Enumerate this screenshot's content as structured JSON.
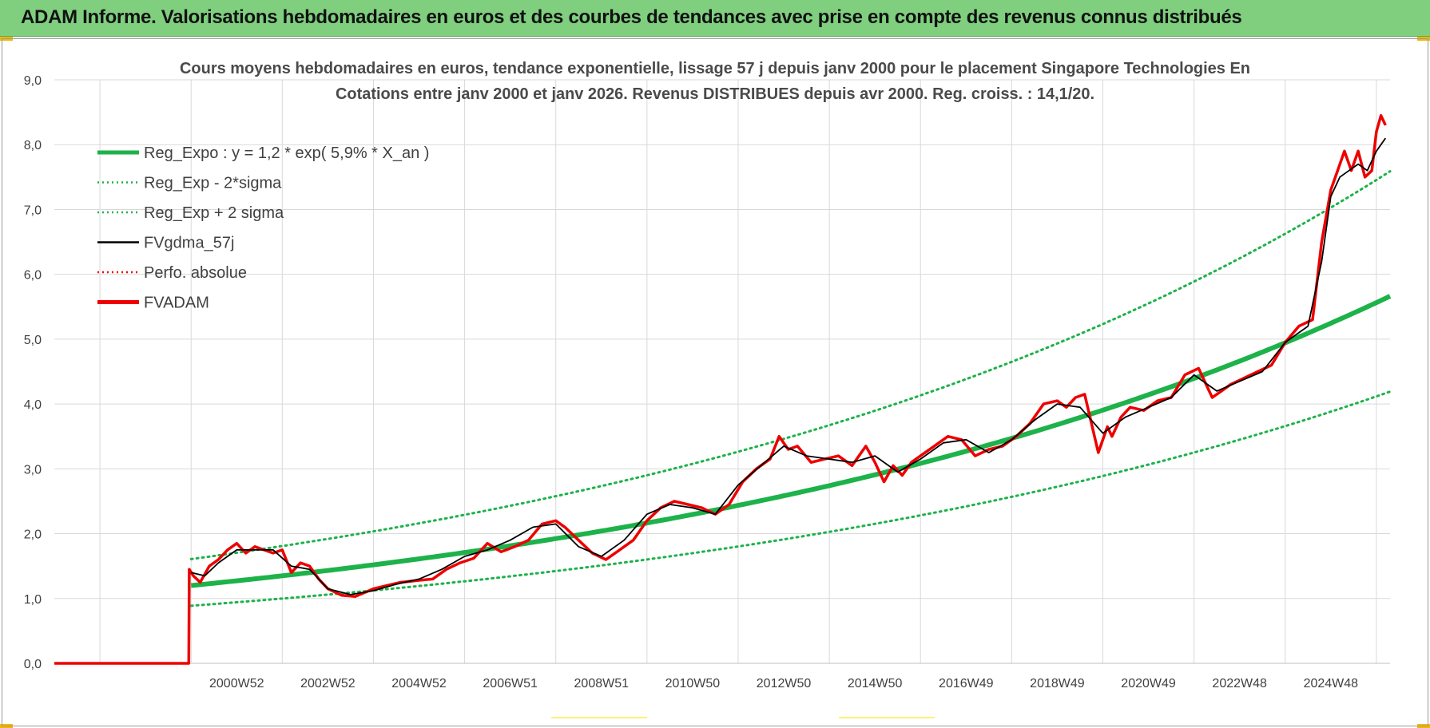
{
  "banner": {
    "title": "ADAM Informe. Valorisations hebdomadaires en euros et des courbes de tendances avec prise en compte des revenus connus distribués"
  },
  "colors": {
    "banner_bg": "#7fcf7f",
    "green": "#1db24a",
    "red": "#ee0000",
    "black": "#000000",
    "grid": "#d9d9d9",
    "axis_text": "#404040"
  },
  "chart_data": {
    "type": "line",
    "title_line1": "Cours moyens hebdomadaires en euros, tendance exponentielle, lissage 57 j depuis janv 2000 pour le placement Singapore Technologies En",
    "title_line2": "Cotations entre janv 2000 et janv 2026. Revenus DISTRIBUES depuis avr 2000. Reg. croiss. : 14,1/20.",
    "ylim": [
      0,
      9
    ],
    "xlim": [
      1997.0,
      2026.3
    ],
    "y_ticks": [
      "0,0",
      "1,0",
      "2,0",
      "3,0",
      "4,0",
      "5,0",
      "6,0",
      "7,0",
      "8,0",
      "9,0"
    ],
    "x_tick_labels": [
      "2000W52",
      "2002W52",
      "2004W52",
      "2006W51",
      "2008W51",
      "2010W50",
      "2012W50",
      "2014W50",
      "2016W49",
      "2018W49",
      "2020W49",
      "2022W48",
      "2024W48"
    ],
    "x_tick_positions": [
      2001,
      2003,
      2005,
      2007,
      2009,
      2011,
      2013,
      2015,
      2017,
      2019,
      2021,
      2023,
      2025
    ],
    "legend": [
      {
        "name": "Reg_Expo : y = 1,2 * exp( 5,9% *  X_an )",
        "color": "#1db24a",
        "style": "thick"
      },
      {
        "name": "Reg_Exp - 2*sigma",
        "color": "#1db24a",
        "style": "dotted"
      },
      {
        "name": "Reg_Exp + 2 sigma",
        "color": "#1db24a",
        "style": "dotted"
      },
      {
        "name": "FVgdma_57j",
        "color": "#000000",
        "style": "thin"
      },
      {
        "name": "Perfo. absolue",
        "color": "#ee0000",
        "style": "dotted"
      },
      {
        "name": "FVADAM",
        "color": "#ee0000",
        "style": "thick"
      }
    ],
    "regression": {
      "a": 1.2,
      "rate": 0.059,
      "start": 2000.0,
      "end": 2026.3,
      "lower_factor": 0.74,
      "upper_factor": 1.34
    },
    "fvadam": {
      "x": [
        1997.0,
        1999.95,
        1999.96,
        2000.05,
        2000.2,
        2000.4,
        2000.6,
        2000.8,
        2001.0,
        2001.2,
        2001.4,
        2001.6,
        2001.8,
        2002.0,
        2002.2,
        2002.4,
        2002.6,
        2002.8,
        2003.0,
        2003.3,
        2003.6,
        2004.0,
        2004.3,
        2004.6,
        2005.0,
        2005.3,
        2005.6,
        2005.9,
        2006.2,
        2006.5,
        2006.8,
        2007.1,
        2007.4,
        2007.7,
        2008.0,
        2008.2,
        2008.5,
        2008.8,
        2009.1,
        2009.4,
        2009.7,
        2010.0,
        2010.3,
        2010.6,
        2010.9,
        2011.2,
        2011.5,
        2011.8,
        2012.1,
        2012.4,
        2012.7,
        2012.9,
        2013.1,
        2013.3,
        2013.6,
        2013.9,
        2014.2,
        2014.5,
        2014.8,
        2015.0,
        2015.2,
        2015.4,
        2015.6,
        2015.8,
        2016.0,
        2016.3,
        2016.6,
        2016.9,
        2017.2,
        2017.5,
        2017.8,
        2018.1,
        2018.4,
        2018.7,
        2019.0,
        2019.2,
        2019.4,
        2019.6,
        2019.9,
        2020.1,
        2020.2,
        2020.4,
        2020.6,
        2020.9,
        2021.2,
        2021.5,
        2021.8,
        2022.1,
        2022.4,
        2022.6,
        2022.8,
        2023.1,
        2023.4,
        2023.7,
        2024.0,
        2024.3,
        2024.6,
        2024.8,
        2025.0,
        2025.15,
        2025.3,
        2025.45,
        2025.6,
        2025.75,
        2025.9,
        2026.0,
        2026.1,
        2026.2
      ],
      "y": [
        0,
        0,
        1.45,
        1.35,
        1.25,
        1.5,
        1.6,
        1.75,
        1.85,
        1.7,
        1.8,
        1.75,
        1.7,
        1.75,
        1.4,
        1.55,
        1.5,
        1.3,
        1.15,
        1.05,
        1.03,
        1.15,
        1.2,
        1.25,
        1.28,
        1.3,
        1.45,
        1.55,
        1.62,
        1.85,
        1.72,
        1.8,
        1.9,
        2.15,
        2.2,
        2.1,
        1.9,
        1.7,
        1.6,
        1.75,
        1.9,
        2.2,
        2.4,
        2.5,
        2.45,
        2.4,
        2.3,
        2.45,
        2.8,
        3.0,
        3.15,
        3.5,
        3.3,
        3.35,
        3.1,
        3.15,
        3.2,
        3.05,
        3.35,
        3.1,
        2.8,
        3.05,
        2.9,
        3.1,
        3.2,
        3.35,
        3.5,
        3.45,
        3.2,
        3.3,
        3.35,
        3.5,
        3.7,
        4.0,
        4.05,
        3.95,
        4.1,
        4.15,
        3.25,
        3.65,
        3.5,
        3.8,
        3.95,
        3.9,
        4.05,
        4.1,
        4.45,
        4.55,
        4.1,
        4.2,
        4.3,
        4.4,
        4.5,
        4.6,
        4.95,
        5.2,
        5.3,
        6.5,
        7.3,
        7.6,
        7.9,
        7.6,
        7.9,
        7.5,
        7.6,
        8.2,
        8.45,
        8.3
      ]
    },
    "fvgdma": {
      "x": [
        2000.0,
        2000.3,
        2000.6,
        2001.0,
        2001.4,
        2001.8,
        2002.2,
        2002.6,
        2003.0,
        2003.5,
        2004.0,
        2004.5,
        2005.0,
        2005.5,
        2006.0,
        2006.5,
        2007.0,
        2007.5,
        2008.0,
        2008.5,
        2009.0,
        2009.5,
        2010.0,
        2010.5,
        2011.0,
        2011.5,
        2012.0,
        2012.5,
        2013.0,
        2013.5,
        2014.0,
        2014.5,
        2015.0,
        2015.5,
        2016.0,
        2016.5,
        2017.0,
        2017.5,
        2018.0,
        2018.5,
        2019.0,
        2019.5,
        2020.0,
        2020.5,
        2021.0,
        2021.5,
        2022.0,
        2022.5,
        2023.0,
        2023.5,
        2024.0,
        2024.5,
        2024.8,
        2025.0,
        2025.2,
        2025.4,
        2025.6,
        2025.8,
        2026.0,
        2026.2
      ],
      "y": [
        1.4,
        1.35,
        1.55,
        1.75,
        1.75,
        1.75,
        1.5,
        1.45,
        1.15,
        1.06,
        1.12,
        1.22,
        1.3,
        1.45,
        1.65,
        1.75,
        1.9,
        2.1,
        2.15,
        1.8,
        1.65,
        1.9,
        2.3,
        2.45,
        2.4,
        2.3,
        2.75,
        3.05,
        3.35,
        3.2,
        3.15,
        3.1,
        3.2,
        2.95,
        3.15,
        3.4,
        3.45,
        3.25,
        3.45,
        3.75,
        4.0,
        3.95,
        3.55,
        3.8,
        3.95,
        4.1,
        4.45,
        4.2,
        4.35,
        4.5,
        4.95,
        5.2,
        6.2,
        7.2,
        7.5,
        7.6,
        7.7,
        7.6,
        7.9,
        8.1
      ]
    }
  },
  "bottom_marks": [
    {
      "name": "mark-a"
    },
    {
      "name": "mark-b"
    }
  ]
}
